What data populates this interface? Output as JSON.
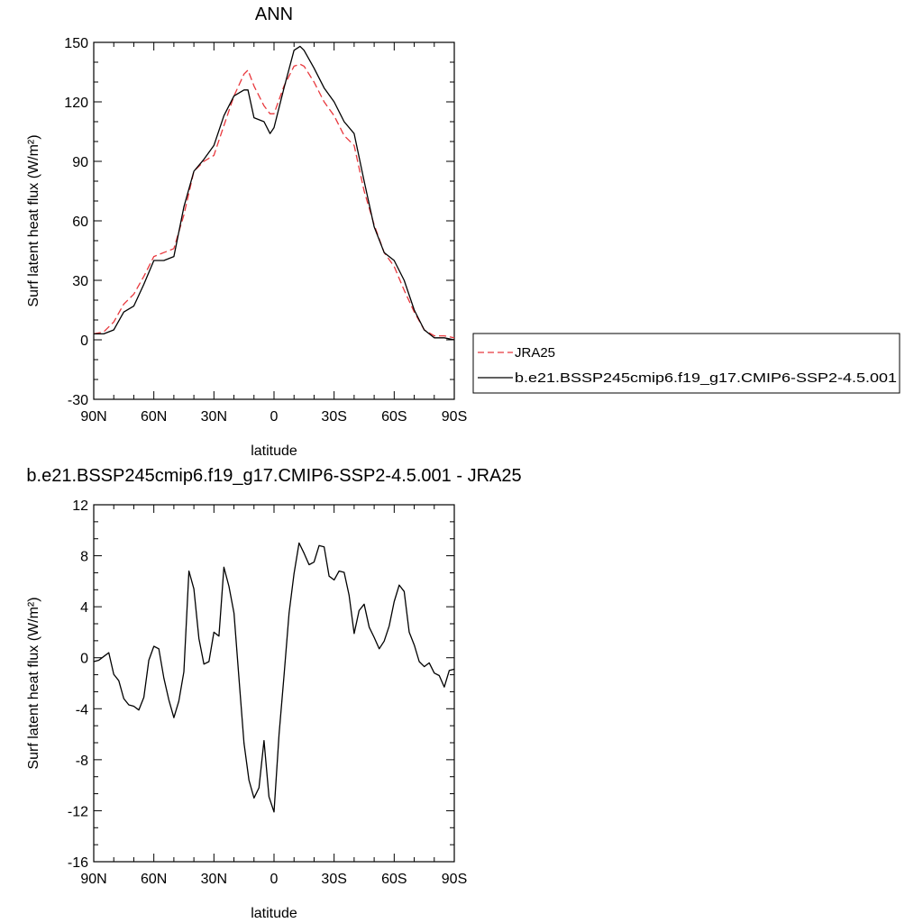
{
  "chart_data": [
    {
      "type": "line",
      "title": "ANN",
      "xlabel": "latitude",
      "ylabel": "Surf latent heat flux (W/m²)",
      "xlim": [
        90,
        -90
      ],
      "ylim": [
        -30,
        150
      ],
      "yticks": [
        -30,
        0,
        30,
        60,
        90,
        120,
        150
      ],
      "xtick_values": [
        90,
        60,
        30,
        0,
        -30,
        -60,
        -90
      ],
      "xtick_labels": [
        "90N",
        "60N",
        "30N",
        "0",
        "30S",
        "60S",
        "90S"
      ],
      "grid": false,
      "legend_position": "right",
      "series": [
        {
          "name": "JRA25",
          "color": "#e8383d",
          "dash": "dashed",
          "x": [
            90,
            85,
            80,
            75,
            70,
            65,
            60,
            55,
            50,
            45,
            40,
            35,
            30,
            25,
            20,
            15,
            13,
            10,
            5,
            2,
            0,
            -5,
            -10,
            -13,
            -15,
            -20,
            -25,
            -30,
            -35,
            -40,
            -45,
            -50,
            -55,
            -60,
            -65,
            -70,
            -75,
            -80,
            -85,
            -90
          ],
          "y": [
            3,
            4,
            9,
            18,
            23,
            32,
            42,
            44,
            46,
            63,
            85,
            90,
            93,
            108,
            123,
            134,
            136,
            128,
            118,
            114,
            114,
            128,
            138,
            139,
            138,
            130,
            120,
            113,
            103,
            98,
            75,
            58,
            44,
            37,
            25,
            14,
            5,
            2,
            2,
            1
          ]
        },
        {
          "name": "b.e21.BSSP245cmip6.f19_g17.CMIP6-SSP2-4.5.001",
          "color": "#000000",
          "dash": "solid",
          "x": [
            90,
            85,
            80,
            75,
            70,
            65,
            60,
            55,
            50,
            45,
            40,
            35,
            30,
            25,
            20,
            15,
            13,
            10,
            5,
            2,
            0,
            -5,
            -10,
            -13,
            -15,
            -20,
            -25,
            -30,
            -35,
            -40,
            -45,
            -50,
            -55,
            -60,
            -65,
            -70,
            -75,
            -80,
            -85,
            -90
          ],
          "y": [
            3,
            3,
            5,
            14,
            17,
            28,
            40,
            40,
            42,
            67,
            85,
            91,
            98,
            113,
            123,
            126,
            126,
            112,
            110,
            104,
            107,
            127,
            146,
            148,
            146,
            137,
            127,
            120,
            110,
            104,
            80,
            57,
            44,
            40,
            30,
            15,
            5,
            1,
            1,
            0
          ]
        }
      ]
    },
    {
      "type": "line",
      "title": "b.e21.BSSP245cmip6.f19_g17.CMIP6-SSP2-4.5.001 - JRA25",
      "xlabel": "latitude",
      "ylabel": "Surf latent heat flux (W/m²)",
      "xlim": [
        90,
        -90
      ],
      "ylim": [
        -16,
        12
      ],
      "yticks": [
        -16,
        -12,
        -8,
        -4,
        0,
        4,
        8,
        12
      ],
      "xtick_values": [
        90,
        60,
        30,
        0,
        -30,
        -60,
        -90
      ],
      "xtick_labels": [
        "90N",
        "60N",
        "30N",
        "0",
        "30S",
        "60S",
        "90S"
      ],
      "grid": false,
      "series": [
        {
          "name": "",
          "color": "#000000",
          "dash": "solid",
          "x": [
            90,
            87.5,
            85,
            82.5,
            80,
            77.5,
            75,
            72.5,
            70,
            67.5,
            65,
            62.5,
            60,
            57.5,
            55,
            52.5,
            50,
            47.5,
            45,
            42.5,
            40,
            37.5,
            35,
            32.5,
            30,
            27.5,
            25,
            22.5,
            20,
            17.5,
            15,
            12.5,
            10,
            7.5,
            5,
            2.5,
            0,
            -2.5,
            -5,
            -7.5,
            -10,
            -12.5,
            -15,
            -17.5,
            -20,
            -22.5,
            -25,
            -27.5,
            -30,
            -32.5,
            -35,
            -37.5,
            -40,
            -42.5,
            -45,
            -47.5,
            -50,
            -52.5,
            -55,
            -57.5,
            -60,
            -62.5,
            -65,
            -67.5,
            -70,
            -72.5,
            -75,
            -77.5,
            -80,
            -82.5,
            -85,
            -87.5,
            -90
          ],
          "y": [
            -0.3,
            -0.2,
            0.1,
            0.4,
            -1.3,
            -1.8,
            -3.2,
            -3.7,
            -3.8,
            -4.1,
            -3.1,
            -0.2,
            0.9,
            0.7,
            -1.6,
            -3.3,
            -4.7,
            -3.4,
            -1.1,
            6.8,
            5.4,
            1.5,
            -0.5,
            -0.3,
            2.0,
            1.7,
            7.1,
            5.6,
            3.5,
            -1.6,
            -6.7,
            -9.6,
            -11.0,
            -10.2,
            -6.5,
            -10.9,
            -12.1,
            -6.0,
            -1.4,
            3.5,
            6.6,
            9.0,
            8.2,
            7.3,
            7.5,
            8.8,
            8.7,
            6.4,
            6.1,
            6.8,
            6.7,
            4.9,
            1.9,
            3.7,
            4.2,
            2.4,
            1.6,
            0.7,
            1.3,
            2.5,
            4.4,
            5.7,
            5.2,
            2.0,
            1.0,
            -0.3,
            -0.7,
            -0.4,
            -1.2,
            -1.4,
            -2.3,
            -1.0,
            -0.9
          ]
        }
      ]
    }
  ]
}
